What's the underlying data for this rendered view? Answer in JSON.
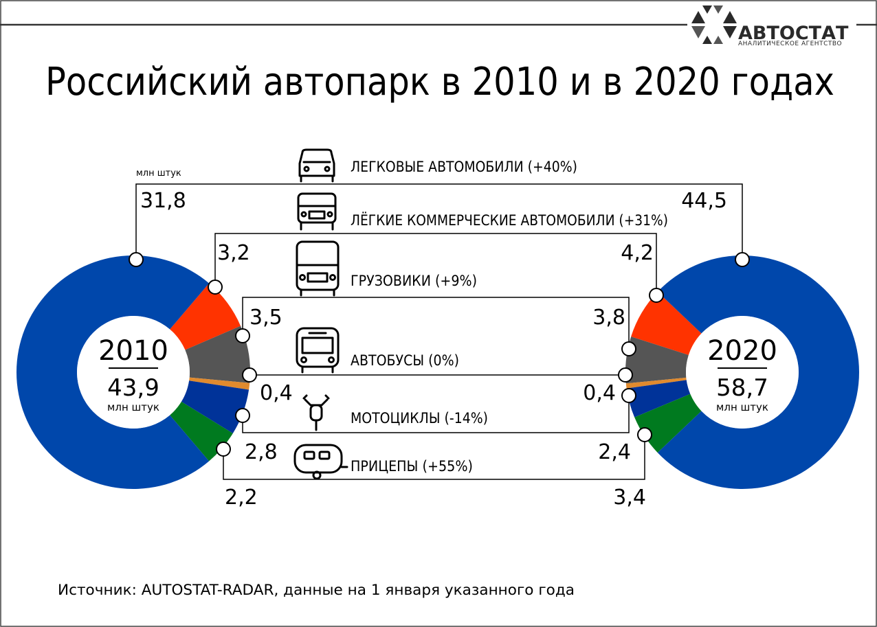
{
  "header": {
    "title": "Российский автопарк в 2010 и в 2020 годах",
    "logo_name": "АВТОСТАТ",
    "logo_sub": "АНАЛИТИЧЕСКОЕ АГЕНТСТВО"
  },
  "units_label": "млн штук",
  "source": "Источник: AUTOSTAT-RADAR, данные на 1 января указанного года",
  "chart_data": {
    "type": "pie",
    "donut": true,
    "title": "Российский автопарк в 2010 и в 2020 годах",
    "unit": "млн штук",
    "categories": [
      {
        "label": "ЛЕГКОВЫЕ АВТОМОБИЛИ (+40%)",
        "icon": "car-icon",
        "color": "#0047ab"
      },
      {
        "label": "ЛЁГКИЕ КОММЕРЧЕСКИЕ АВТОМОБИЛИ (+31%)",
        "icon": "van-icon",
        "color": "#ff3300"
      },
      {
        "label": "ГРУЗОВИКИ (+9%)",
        "icon": "truck-icon",
        "color": "#555555"
      },
      {
        "label": "АВТОБУСЫ (0%)",
        "icon": "bus-icon",
        "color": "#e08a2e"
      },
      {
        "label": "МОТОЦИКЛЫ (-14%)",
        "icon": "motorcycle-icon",
        "color": "#003399"
      },
      {
        "label": "ПРИЦЕПЫ (+55%)",
        "icon": "trailer-icon",
        "color": "#007a1f"
      }
    ],
    "series": [
      {
        "name": "2010",
        "total": "43,9",
        "values": [
          31.8,
          3.2,
          3.5,
          0.4,
          2.8,
          2.2
        ],
        "labels": [
          "31,8",
          "3,2",
          "3,5",
          "0,4",
          "2,8",
          "2,2"
        ]
      },
      {
        "name": "2020",
        "total": "58,7",
        "values": [
          44.5,
          4.2,
          3.8,
          0.4,
          2.4,
          3.4
        ],
        "labels": [
          "44,5",
          "4,2",
          "3,8",
          "0,4",
          "2,4",
          "3,4"
        ]
      }
    ]
  }
}
